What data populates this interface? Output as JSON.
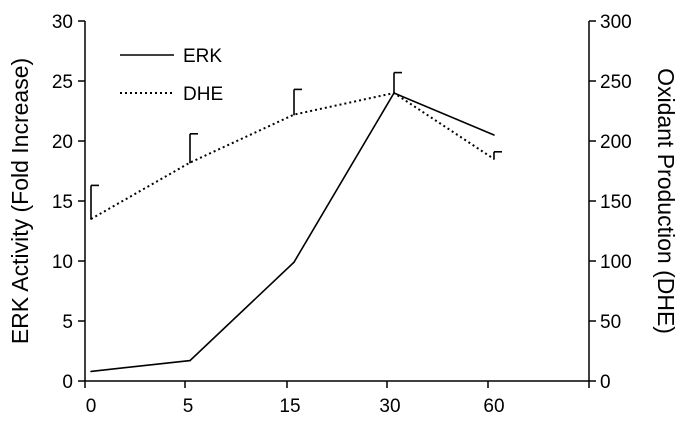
{
  "chart_data": {
    "type": "line",
    "title": "",
    "x": [
      "0",
      "5",
      "15",
      "30",
      "60"
    ],
    "xlabel": "",
    "ylabel": "ERK Activity (Fold Increase)",
    "y2label": "Oxidant Production (DHE)",
    "ylim": [
      0,
      30
    ],
    "y2lim": [
      0,
      300
    ],
    "yticks": [
      "0",
      "5",
      "10",
      "15",
      "20",
      "25",
      "30"
    ],
    "y2ticks": [
      "0",
      "50",
      "100",
      "150",
      "200",
      "250",
      "300"
    ],
    "grid": false,
    "legend_position": "top-left",
    "series": [
      {
        "name": "ERK",
        "axis": "left",
        "style": "solid",
        "values": [
          0.8,
          1.7,
          9.9,
          24.0,
          20.5
        ]
      },
      {
        "name": "DHE",
        "axis": "right",
        "style": "dotted",
        "values": [
          135,
          182,
          222,
          240,
          185
        ],
        "error_plus": [
          28,
          24,
          21,
          17,
          6
        ]
      }
    ]
  }
}
